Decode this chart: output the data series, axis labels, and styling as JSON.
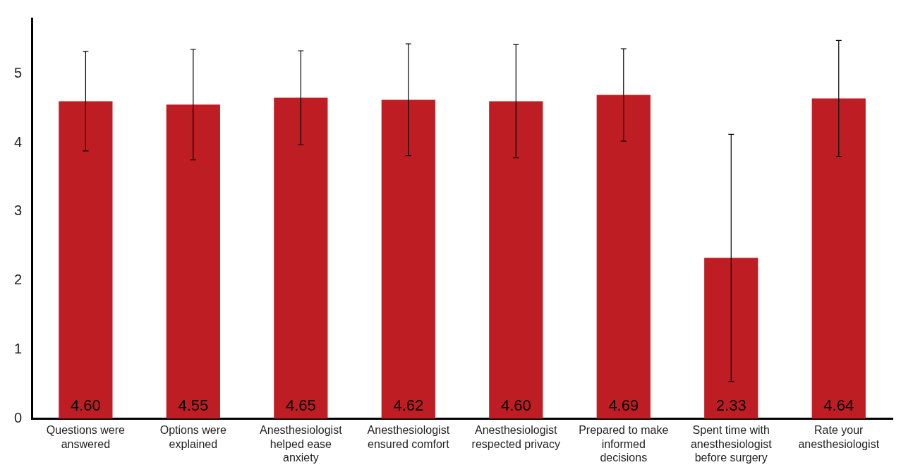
{
  "chart_data": {
    "type": "bar",
    "categories": [
      [
        "Questions were",
        "answered"
      ],
      [
        "Options were",
        "explained"
      ],
      [
        "Anesthesiologist",
        "helped ease",
        "anxiety"
      ],
      [
        "Anesthesiologist",
        "ensured comfort"
      ],
      [
        "Anesthesiologist",
        "respected privacy"
      ],
      [
        "Prepared to make",
        "informed",
        "decisions"
      ],
      [
        "Spent time with",
        "anesthesiologist",
        "before surgery"
      ],
      [
        "Rate your",
        "anesthesiologist"
      ]
    ],
    "values": [
      4.6,
      4.55,
      4.65,
      4.62,
      4.6,
      4.69,
      2.33,
      4.64
    ],
    "errors": [
      0.72,
      0.8,
      0.68,
      0.81,
      0.82,
      0.67,
      1.79,
      0.84
    ],
    "color": "#be1e23",
    "ylim": [
      0,
      5.8
    ],
    "yticks": [
      0,
      1,
      2,
      3,
      4,
      5
    ],
    "value_labels": [
      "4.60",
      "4.55",
      "4.65",
      "4.62",
      "4.60",
      "4.69",
      "2.33",
      "4.64"
    ],
    "grid": false,
    "legend": false
  }
}
